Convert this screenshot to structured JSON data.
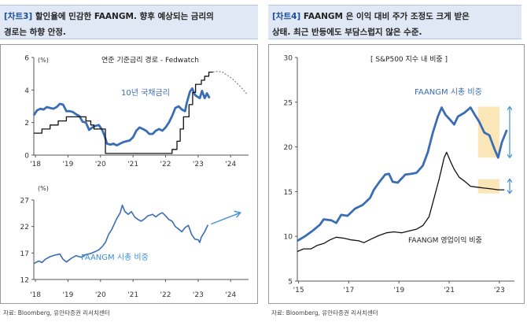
{
  "left_panel": {
    "tag": "[차트3]",
    "header_line1": " 할인율에 민감한 FAANGM. 향후 예상되는 금리의",
    "header_line2": "경로는 하향 안정.",
    "source": "자료: Bloomberg, 유안타증권 리서치센터"
  },
  "right_panel": {
    "tag": "[차트4]",
    "header_line1": " FAANGM 은 이익 대비 주가 조정도 크게 받은",
    "header_line2": "상태. 최근 반등에도 부담스럽지 않은 수준.",
    "source": "자료: Bloomberg, 유안타증권 리서치센터"
  },
  "colors": {
    "blue": "#3a6db3",
    "black": "#111111",
    "grey_dash": "#777777",
    "highlight": "#fbe6b8",
    "arrow": "#3f8fd6",
    "header_bg": "#dfe8f4"
  },
  "chart_data": [
    {
      "id": "rates",
      "type": "line",
      "unit": "(%)",
      "ylim": [
        0,
        6
      ],
      "yticks": [
        0,
        2,
        4,
        6
      ],
      "x_ticks": [
        "'18",
        "'19",
        "'20",
        "'21",
        "'22",
        "'23",
        "'24"
      ],
      "x_tick_values": [
        2018,
        2019,
        2020,
        2021,
        2022,
        2023,
        2024
      ],
      "xlim": [
        2017.95,
        2024.55
      ],
      "grid": false,
      "legend_title": "연준 기준금리 경로 - Fedwatch",
      "series": [
        {
          "name": "10년 국채금리",
          "style": "blue-thick",
          "points": [
            [
              2017.95,
              2.45
            ],
            [
              2018.05,
              2.75
            ],
            [
              2018.15,
              2.85
            ],
            [
              2018.25,
              2.8
            ],
            [
              2018.35,
              2.95
            ],
            [
              2018.45,
              2.9
            ],
            [
              2018.55,
              2.85
            ],
            [
              2018.65,
              2.95
            ],
            [
              2018.75,
              3.15
            ],
            [
              2018.85,
              3.1
            ],
            [
              2018.95,
              2.7
            ],
            [
              2019.05,
              2.7
            ],
            [
              2019.15,
              2.65
            ],
            [
              2019.25,
              2.5
            ],
            [
              2019.35,
              2.4
            ],
            [
              2019.45,
              2.05
            ],
            [
              2019.55,
              2.0
            ],
            [
              2019.65,
              1.55
            ],
            [
              2019.75,
              1.7
            ],
            [
              2019.85,
              1.8
            ],
            [
              2019.95,
              1.85
            ],
            [
              2020.05,
              1.55
            ],
            [
              2020.12,
              1.2
            ],
            [
              2020.2,
              0.7
            ],
            [
              2020.3,
              0.65
            ],
            [
              2020.4,
              0.7
            ],
            [
              2020.5,
              0.6
            ],
            [
              2020.6,
              0.7
            ],
            [
              2020.7,
              0.8
            ],
            [
              2020.8,
              0.85
            ],
            [
              2020.9,
              0.9
            ],
            [
              2021.0,
              1.1
            ],
            [
              2021.1,
              1.5
            ],
            [
              2021.2,
              1.7
            ],
            [
              2021.3,
              1.6
            ],
            [
              2021.4,
              1.5
            ],
            [
              2021.5,
              1.3
            ],
            [
              2021.6,
              1.3
            ],
            [
              2021.7,
              1.5
            ],
            [
              2021.8,
              1.6
            ],
            [
              2021.9,
              1.5
            ],
            [
              2022.0,
              1.7
            ],
            [
              2022.1,
              2.0
            ],
            [
              2022.2,
              2.4
            ],
            [
              2022.3,
              2.9
            ],
            [
              2022.4,
              3.0
            ],
            [
              2022.5,
              2.8
            ],
            [
              2022.6,
              2.7
            ],
            [
              2022.65,
              3.2
            ],
            [
              2022.75,
              3.9
            ],
            [
              2022.82,
              4.1
            ],
            [
              2022.9,
              3.7
            ],
            [
              2022.97,
              3.6
            ],
            [
              2023.05,
              3.5
            ],
            [
              2023.12,
              3.95
            ],
            [
              2023.2,
              3.5
            ],
            [
              2023.27,
              3.8
            ],
            [
              2023.35,
              3.5
            ]
          ]
        },
        {
          "name": "기준금리",
          "style": "black",
          "points": [
            [
              2017.95,
              1.35
            ],
            [
              2018.2,
              1.35
            ],
            [
              2018.2,
              1.6
            ],
            [
              2018.45,
              1.6
            ],
            [
              2018.45,
              1.85
            ],
            [
              2018.7,
              1.85
            ],
            [
              2018.7,
              2.1
            ],
            [
              2018.95,
              2.1
            ],
            [
              2018.95,
              2.35
            ],
            [
              2019.55,
              2.35
            ],
            [
              2019.55,
              2.1
            ],
            [
              2019.7,
              2.1
            ],
            [
              2019.7,
              1.85
            ],
            [
              2019.8,
              1.85
            ],
            [
              2019.8,
              1.6
            ],
            [
              2020.15,
              1.6
            ],
            [
              2020.15,
              0.1
            ],
            [
              2022.2,
              0.1
            ],
            [
              2022.2,
              0.35
            ],
            [
              2022.35,
              0.35
            ],
            [
              2022.35,
              0.85
            ],
            [
              2022.45,
              0.85
            ],
            [
              2022.45,
              1.6
            ],
            [
              2022.55,
              1.6
            ],
            [
              2022.55,
              2.35
            ],
            [
              2022.72,
              2.35
            ],
            [
              2022.72,
              3.1
            ],
            [
              2022.83,
              3.1
            ],
            [
              2022.83,
              3.85
            ],
            [
              2022.92,
              3.85
            ],
            [
              2022.92,
              4.35
            ],
            [
              2023.1,
              4.35
            ],
            [
              2023.1,
              4.6
            ],
            [
              2023.2,
              4.6
            ],
            [
              2023.2,
              4.85
            ],
            [
              2023.33,
              4.85
            ],
            [
              2023.33,
              5.1
            ],
            [
              2023.45,
              5.1
            ]
          ]
        },
        {
          "name": "연준 기준금리 경로 - Fedwatch",
          "style": "grey-dashed",
          "points": [
            [
              2023.45,
              5.1
            ],
            [
              2023.6,
              5.15
            ],
            [
              2023.75,
              5.1
            ],
            [
              2023.9,
              4.9
            ],
            [
              2024.05,
              4.7
            ],
            [
              2024.2,
              4.4
            ],
            [
              2024.35,
              4.1
            ],
            [
              2024.5,
              3.75
            ]
          ]
        }
      ],
      "labels": [
        {
          "text": "10년 국채금리",
          "series": "10년 국채금리"
        }
      ]
    },
    {
      "id": "faangm_share",
      "type": "line",
      "unit": "(%)",
      "ylim": [
        12,
        27
      ],
      "yticks": [
        12,
        17,
        22,
        27
      ],
      "x_ticks": [
        "'18",
        "'19",
        "'20",
        "'21",
        "'22",
        "'23",
        "'24"
      ],
      "x_tick_values": [
        2018,
        2019,
        2020,
        2021,
        2022,
        2023,
        2024
      ],
      "xlim": [
        2017.95,
        2024.55
      ],
      "grid": false,
      "series": [
        {
          "name": "FAANGM 시총 비중",
          "style": "blue-thin",
          "points": [
            [
              2017.95,
              15.0
            ],
            [
              2018.1,
              15.5
            ],
            [
              2018.2,
              15.2
            ],
            [
              2018.3,
              15.8
            ],
            [
              2018.45,
              16.3
            ],
            [
              2018.6,
              16.6
            ],
            [
              2018.75,
              16.8
            ],
            [
              2018.85,
              15.8
            ],
            [
              2018.95,
              15.3
            ],
            [
              2019.1,
              16.0
            ],
            [
              2019.25,
              16.5
            ],
            [
              2019.4,
              16.2
            ],
            [
              2019.55,
              16.7
            ],
            [
              2019.7,
              16.9
            ],
            [
              2019.85,
              17.3
            ],
            [
              2019.95,
              17.6
            ],
            [
              2020.05,
              18.2
            ],
            [
              2020.15,
              19.0
            ],
            [
              2020.25,
              20.5
            ],
            [
              2020.35,
              21.5
            ],
            [
              2020.5,
              23.5
            ],
            [
              2020.6,
              24.5
            ],
            [
              2020.67,
              26.0
            ],
            [
              2020.75,
              24.8
            ],
            [
              2020.85,
              24.3
            ],
            [
              2020.95,
              24.8
            ],
            [
              2021.05,
              23.8
            ],
            [
              2021.15,
              23.3
            ],
            [
              2021.25,
              23.0
            ],
            [
              2021.35,
              23.4
            ],
            [
              2021.45,
              24.0
            ],
            [
              2021.6,
              24.3
            ],
            [
              2021.7,
              23.8
            ],
            [
              2021.8,
              24.3
            ],
            [
              2021.9,
              24.6
            ],
            [
              2022.0,
              24.0
            ],
            [
              2022.1,
              23.3
            ],
            [
              2022.2,
              23.0
            ],
            [
              2022.3,
              22.0
            ],
            [
              2022.4,
              21.5
            ],
            [
              2022.5,
              21.0
            ],
            [
              2022.6,
              21.8
            ],
            [
              2022.7,
              22.2
            ],
            [
              2022.8,
              20.5
            ],
            [
              2022.9,
              19.6
            ],
            [
              2023.0,
              19.5
            ],
            [
              2023.05,
              19.0
            ],
            [
              2023.1,
              20.0
            ],
            [
              2023.2,
              21.0
            ],
            [
              2023.3,
              22.3
            ]
          ]
        }
      ],
      "labels": [
        {
          "text": "FAANGM 시총 비중",
          "series": "FAANGM 시총 비중"
        }
      ],
      "annotation": "upward arrow"
    },
    {
      "id": "sp500_share",
      "type": "line",
      "title": "[ S&P500 지수 내 비중 ]",
      "ylim": [
        5,
        30
      ],
      "yticks": [
        5,
        10,
        15,
        20,
        25,
        30
      ],
      "x_ticks": [
        "'15",
        "'17",
        "'19",
        "'21",
        "'23"
      ],
      "x_tick_values": [
        2015,
        2017,
        2019,
        2021,
        2023
      ],
      "xlim": [
        2014.95,
        2023.6
      ],
      "grid": false,
      "series": [
        {
          "name": "FAANGM 시총 비중",
          "style": "blue-thick",
          "points": [
            [
              2014.95,
              9.5
            ],
            [
              2015.25,
              10.0
            ],
            [
              2015.55,
              10.6
            ],
            [
              2015.85,
              11.3
            ],
            [
              2016.0,
              11.9
            ],
            [
              2016.3,
              11.8
            ],
            [
              2016.5,
              11.5
            ],
            [
              2016.7,
              12.4
            ],
            [
              2016.95,
              12.3
            ],
            [
              2017.25,
              13.1
            ],
            [
              2017.55,
              13.5
            ],
            [
              2017.85,
              14.3
            ],
            [
              2018.0,
              15.2
            ],
            [
              2018.2,
              16.0
            ],
            [
              2018.45,
              16.9
            ],
            [
              2018.6,
              17.0
            ],
            [
              2018.75,
              16.1
            ],
            [
              2018.95,
              16.0
            ],
            [
              2019.25,
              16.9
            ],
            [
              2019.5,
              17.0
            ],
            [
              2019.7,
              17.1
            ],
            [
              2019.95,
              17.9
            ],
            [
              2020.15,
              19.4
            ],
            [
              2020.35,
              21.6
            ],
            [
              2020.55,
              23.4
            ],
            [
              2020.7,
              24.4
            ],
            [
              2020.85,
              23.6
            ],
            [
              2021.05,
              23.0
            ],
            [
              2021.2,
              22.5
            ],
            [
              2021.35,
              23.4
            ],
            [
              2021.6,
              23.8
            ],
            [
              2021.85,
              24.4
            ],
            [
              2022.0,
              23.7
            ],
            [
              2022.2,
              22.8
            ],
            [
              2022.4,
              21.6
            ],
            [
              2022.6,
              21.3
            ],
            [
              2022.8,
              19.8
            ],
            [
              2022.95,
              18.8
            ],
            [
              2023.1,
              20.5
            ],
            [
              2023.3,
              21.9
            ]
          ]
        },
        {
          "name": "FAANGM 영업이익 비중",
          "style": "black",
          "points": [
            [
              2014.95,
              8.3
            ],
            [
              2015.2,
              8.6
            ],
            [
              2015.5,
              8.6
            ],
            [
              2015.75,
              9.0
            ],
            [
              2016.0,
              9.2
            ],
            [
              2016.25,
              9.6
            ],
            [
              2016.5,
              9.9
            ],
            [
              2016.8,
              9.8
            ],
            [
              2017.1,
              9.6
            ],
            [
              2017.4,
              9.5
            ],
            [
              2017.6,
              9.3
            ],
            [
              2017.9,
              9.7
            ],
            [
              2018.2,
              10.1
            ],
            [
              2018.5,
              10.4
            ],
            [
              2018.8,
              10.5
            ],
            [
              2019.1,
              10.4
            ],
            [
              2019.4,
              10.6
            ],
            [
              2019.7,
              10.8
            ],
            [
              2019.95,
              11.2
            ],
            [
              2020.2,
              12.2
            ],
            [
              2020.4,
              14.3
            ],
            [
              2020.6,
              16.4
            ],
            [
              2020.8,
              18.8
            ],
            [
              2020.9,
              19.4
            ],
            [
              2021.05,
              18.4
            ],
            [
              2021.2,
              17.5
            ],
            [
              2021.4,
              16.6
            ],
            [
              2021.6,
              16.2
            ],
            [
              2021.85,
              15.6
            ],
            [
              2022.1,
              15.5
            ],
            [
              2022.4,
              15.4
            ],
            [
              2022.7,
              15.3
            ],
            [
              2022.95,
              15.2
            ],
            [
              2023.2,
              15.2
            ]
          ]
        }
      ],
      "labels": [
        {
          "text": "FAANGM 시총 비중",
          "series": "FAANGM 시총 비중"
        },
        {
          "text": "FAANGM 영업이익 비중",
          "series": "FAANGM 영업이익 비중"
        }
      ],
      "highlight_ranges": [
        {
          "x": [
            2022.15,
            2023.0
          ],
          "y": [
            18.8,
            24.5
          ]
        },
        {
          "x": [
            2022.15,
            2023.0
          ],
          "y": [
            14.8,
            16.4
          ]
        }
      ],
      "annotation": "double-headed arrows"
    }
  ]
}
